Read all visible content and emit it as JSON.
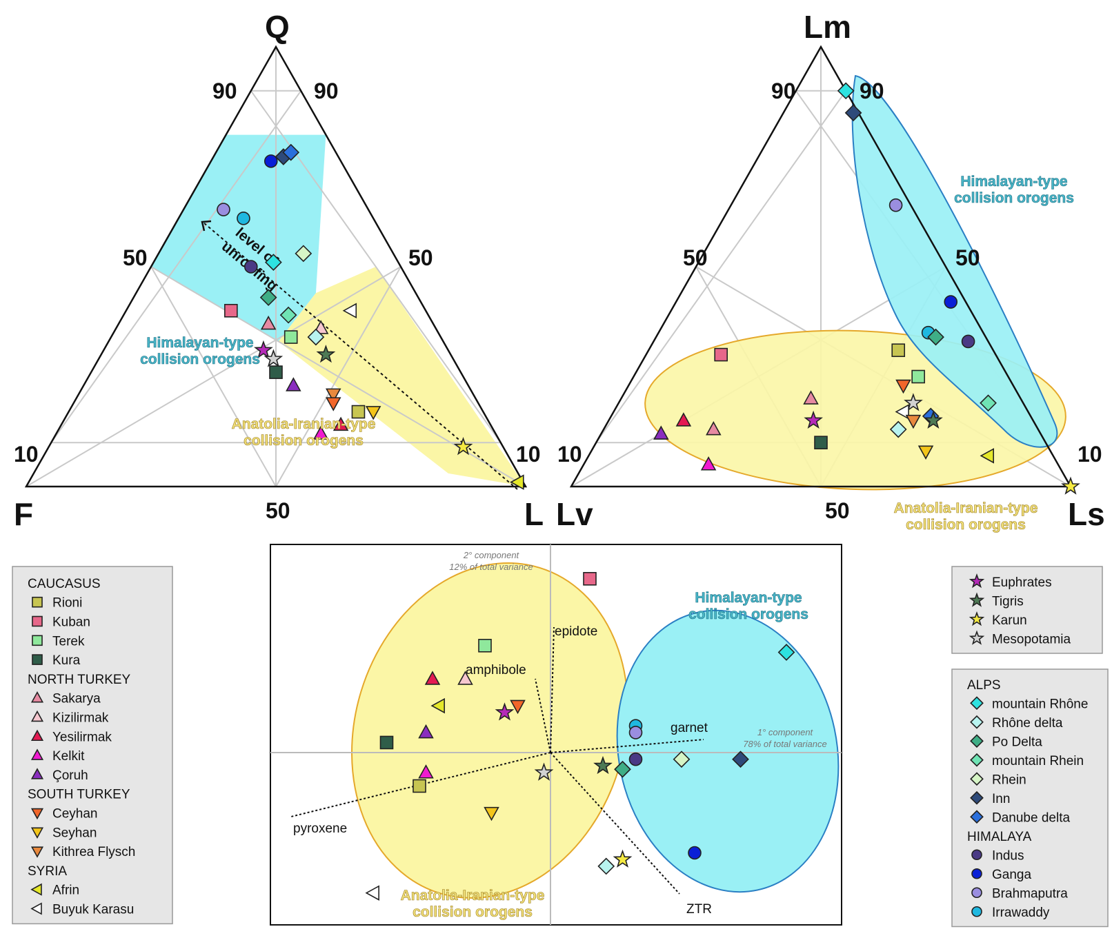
{
  "chart_data": [
    {
      "type": "scatter",
      "subtype": "ternary",
      "vertices": {
        "top": "Q",
        "left": "F",
        "right": "L"
      },
      "ticks": {
        "left_edge": [
          "90",
          "50",
          "10"
        ],
        "right_edge": [
          "90",
          "50",
          "10"
        ],
        "bottom_edge": [
          "50"
        ]
      },
      "regions": [
        {
          "name": "Himalayan-type collision orogens",
          "color": "#9af0f5"
        },
        {
          "name": "Anatolia-Iranian-type collision orogens",
          "color": "#fbf6a6"
        }
      ],
      "annotation": "level of unroofing",
      "points": [
        {
          "source": "Ganga",
          "Q": 74,
          "F": 14,
          "L": 12
        },
        {
          "source": "Inn",
          "Q": 75,
          "F": 11,
          "L": 14
        },
        {
          "source": "Danube delta",
          "Q": 76,
          "F": 9,
          "L": 15
        },
        {
          "source": "Brahmaputra",
          "Q": 63,
          "F": 29,
          "L": 8
        },
        {
          "source": "Irrawaddy",
          "Q": 61,
          "F": 26,
          "L": 13
        },
        {
          "source": "mountain Rhône",
          "Q": 51,
          "F": 25,
          "L": 24
        },
        {
          "source": "Rhein",
          "Q": 53,
          "F": 18,
          "L": 29
        },
        {
          "source": "Indus",
          "Q": 50,
          "F": 30,
          "L": 20
        },
        {
          "source": "Po Delta",
          "Q": 43,
          "F": 30,
          "L": 27
        },
        {
          "source": "Kuban",
          "Q": 40,
          "F": 39,
          "L": 21
        },
        {
          "source": "mountain Rhein",
          "Q": 39,
          "F": 28,
          "L": 33
        },
        {
          "source": "Buyuk Karasu",
          "Q": 40,
          "F": 15,
          "L": 45
        },
        {
          "source": "Sakarya",
          "Q": 37,
          "F": 33,
          "L": 30
        },
        {
          "source": "Kizilirmak",
          "Q": 36,
          "F": 23,
          "L": 41
        },
        {
          "source": "Terek",
          "Q": 34,
          "F": 30,
          "L": 36
        },
        {
          "source": "Rhône delta",
          "Q": 34,
          "F": 25,
          "L": 41
        },
        {
          "source": "Euphrates",
          "Q": 31,
          "F": 37,
          "L": 32
        },
        {
          "source": "Mesopotamia",
          "Q": 29,
          "F": 36,
          "L": 35
        },
        {
          "source": "Tigris",
          "Q": 30,
          "F": 25,
          "L": 45
        },
        {
          "source": "Kura",
          "Q": 26,
          "F": 37,
          "L": 37
        },
        {
          "source": "Çoruh",
          "Q": 23,
          "F": 35,
          "L": 42
        },
        {
          "source": "Kithrea Flysch",
          "Q": 21,
          "F": 28,
          "L": 51
        },
        {
          "source": "Ceyhan",
          "Q": 19,
          "F": 29,
          "L": 52
        },
        {
          "source": "Rioni",
          "Q": 17,
          "F": 25,
          "L": 58
        },
        {
          "source": "Seyhan",
          "Q": 17,
          "F": 22,
          "L": 61
        },
        {
          "source": "Yesilirmak",
          "Q": 14,
          "F": 30,
          "L": 56
        },
        {
          "source": "Kelkit",
          "Q": 12,
          "F": 35,
          "L": 53
        },
        {
          "source": "Karun",
          "Q": 9,
          "F": 8,
          "L": 83
        },
        {
          "source": "Afrin",
          "Q": 1,
          "F": 1,
          "L": 98
        }
      ]
    },
    {
      "type": "scatter",
      "subtype": "ternary",
      "vertices": {
        "top": "Lm",
        "left": "Lv",
        "right": "Ls"
      },
      "ticks": {
        "left_edge": [
          "90",
          "50",
          "10"
        ],
        "right_edge": [
          "90",
          "50",
          "10"
        ],
        "bottom_edge": [
          "50"
        ]
      },
      "regions": [
        {
          "name": "Himalayan-type collision orogens",
          "color": "#9af0f5"
        },
        {
          "name": "Anatolia-Iranian-type collision orogens",
          "color": "#fbf6a6"
        }
      ],
      "points": [
        {
          "source": "mountain Rhône",
          "Lm": 90,
          "Lv": 0,
          "Ls": 10
        },
        {
          "source": "Inn",
          "Lm": 85,
          "Lv": 1,
          "Ls": 14
        },
        {
          "source": "Brahmaputra",
          "Lm": 64,
          "Lv": 3,
          "Ls": 33
        },
        {
          "source": "Ganga",
          "Lm": 42,
          "Lv": 3,
          "Ls": 55
        },
        {
          "source": "Irrawaddy",
          "Lm": 35,
          "Lv": 11,
          "Ls": 54
        },
        {
          "source": "Po Delta",
          "Lm": 34,
          "Lv": 10,
          "Ls": 56
        },
        {
          "source": "Indus",
          "Lm": 33,
          "Lv": 4,
          "Ls": 63
        },
        {
          "source": "Kuban",
          "Lm": 30,
          "Lv": 55,
          "Ls": 15
        },
        {
          "source": "Rioni",
          "Lm": 31,
          "Lv": 19,
          "Ls": 50
        },
        {
          "source": "Terek",
          "Lm": 25,
          "Lv": 18,
          "Ls": 57
        },
        {
          "source": "Ceyhan",
          "Lm": 23,
          "Lv": 22,
          "Ls": 55
        },
        {
          "source": "Sakarya",
          "Lm": 20,
          "Lv": 42,
          "Ls": 38
        },
        {
          "source": "Mesopotamia",
          "Lm": 19,
          "Lv": 22,
          "Ls": 59
        },
        {
          "source": "Buyuk Karasu",
          "Lm": 17,
          "Lv": 25,
          "Ls": 58
        },
        {
          "source": "mountain Rhein",
          "Lm": 19,
          "Lv": 7,
          "Ls": 74
        },
        {
          "source": "Danube delta",
          "Lm": 16,
          "Lv": 20,
          "Ls": 64
        },
        {
          "source": "Kithrea Flysch",
          "Lm": 15,
          "Lv": 24,
          "Ls": 61
        },
        {
          "source": "Tigris",
          "Lm": 15,
          "Lv": 20,
          "Ls": 65
        },
        {
          "source": "Euphrates",
          "Lm": 15,
          "Lv": 44,
          "Ls": 41
        },
        {
          "source": "Rhône delta",
          "Lm": 13,
          "Lv": 28,
          "Ls": 59
        },
        {
          "source": "Yesilirmak",
          "Lm": 15,
          "Lv": 70,
          "Ls": 15
        },
        {
          "source": "Sakarya",
          "Lm": 13,
          "Lv": 65,
          "Ls": 22
        },
        {
          "source": "Çoruh",
          "Lm": 12,
          "Lv": 76,
          "Ls": 12
        },
        {
          "source": "Kura",
          "Lm": 10,
          "Lv": 45,
          "Ls": 45
        },
        {
          "source": "Seyhan",
          "Lm": 8,
          "Lv": 25,
          "Ls": 67
        },
        {
          "source": "Afrin",
          "Lm": 7,
          "Lv": 13,
          "Ls": 80
        },
        {
          "source": "Kelkit",
          "Lm": 5,
          "Lv": 70,
          "Ls": 25
        },
        {
          "source": "Karun",
          "Lm": 0,
          "Lv": 0,
          "Ls": 100
        }
      ]
    },
    {
      "type": "scatter",
      "subtype": "pca-biplot",
      "axes": {
        "pc2": [
          "2° component",
          "12% of total variance"
        ],
        "pc1": [
          "1° component",
          "78% of total variance"
        ]
      },
      "regions": [
        {
          "name": "Himalayan-type collision orogens",
          "color": "#9af0f5"
        },
        {
          "name": "Anatolia-Iranian-type collision orogens",
          "color": "#fbf6a6"
        }
      ],
      "loadings": [
        "epidote",
        "amphibole",
        "garnet",
        "pyroxene",
        "ZTR"
      ],
      "xlim": [
        -3.8,
        3.8
      ],
      "ylim": [
        -2.2,
        2.8
      ],
      "points": [
        {
          "source": "Kuban",
          "x": 0.6,
          "y": 2.6
        },
        {
          "source": "Terek",
          "x": -1.0,
          "y": 1.6
        },
        {
          "source": "mountain Rhône",
          "x": 3.6,
          "y": 1.5
        },
        {
          "source": "Yesilirmak",
          "x": -1.8,
          "y": 1.1
        },
        {
          "source": "Kizilirmak",
          "x": -1.3,
          "y": 1.1
        },
        {
          "source": "Afrin",
          "x": -1.7,
          "y": 0.7
        },
        {
          "source": "Ceyhan",
          "x": -0.5,
          "y": 0.7
        },
        {
          "source": "Euphrates",
          "x": -0.7,
          "y": 0.6
        },
        {
          "source": "Çoruh",
          "x": -1.9,
          "y": 0.3
        },
        {
          "source": "Kura",
          "x": -2.5,
          "y": 0.15
        },
        {
          "source": "Irrawaddy",
          "x": 1.3,
          "y": 0.4
        },
        {
          "source": "Brahmaputra",
          "x": 1.3,
          "y": 0.3
        },
        {
          "source": "Indus",
          "x": 1.3,
          "y": -0.1
        },
        {
          "source": "Po Delta",
          "x": 1.1,
          "y": -0.25
        },
        {
          "source": "Rhein",
          "x": 2.0,
          "y": -0.1
        },
        {
          "source": "Inn",
          "x": 2.9,
          "y": -0.1
        },
        {
          "source": "Tigris",
          "x": 0.8,
          "y": -0.2
        },
        {
          "source": "Mesopotamia",
          "x": -0.1,
          "y": -0.3
        },
        {
          "source": "Kelkit",
          "x": -1.9,
          "y": -0.3
        },
        {
          "source": "Rioni",
          "x": -2.0,
          "y": -0.5
        },
        {
          "source": "Seyhan",
          "x": -0.9,
          "y": -0.9
        },
        {
          "source": "Ganga",
          "x": 2.2,
          "y": -1.5
        },
        {
          "source": "Karun",
          "x": 1.1,
          "y": -1.6
        },
        {
          "source": "Rhône delta",
          "x": 0.85,
          "y": -1.7
        },
        {
          "source": "Buyuk Karasu",
          "x": -2.7,
          "y": -2.1
        }
      ]
    }
  ],
  "labels": {
    "Q": "Q",
    "F": "F",
    "L": "L",
    "Lm": "Lm",
    "Lv": "Lv",
    "Ls": "Ls",
    "t90": "90",
    "t50": "50",
    "t10": "10",
    "him1": "Himalayan-type",
    "him2": "collision orogens",
    "ana1": "Anatolia-Iranian-type",
    "ana2": "collision orogens",
    "unroof1": "level of",
    "unroof2": "unroofing",
    "pc2a": "2° component",
    "pc2b": "12% of total variance",
    "pc1a": "1° component",
    "pc1b": "78% of total variance",
    "epidote": "epidote",
    "amphibole": "amphibole",
    "garnet": "garnet",
    "pyroxene": "pyroxene",
    "ZTR": "ZTR"
  },
  "legend": {
    "left": [
      {
        "heading": "CAUCASUS"
      },
      {
        "label": "Rioni",
        "shape": "square",
        "color": "#c7c552"
      },
      {
        "label": "Kuban",
        "shape": "square",
        "color": "#e7688a"
      },
      {
        "label": "Terek",
        "shape": "square",
        "color": "#8fe89c"
      },
      {
        "label": "Kura",
        "shape": "square",
        "color": "#2f5d49"
      },
      {
        "heading": "NORTH TURKEY"
      },
      {
        "label": "Sakarya",
        "shape": "triangle-up",
        "color": "#e78aa2"
      },
      {
        "label": "Kizilirmak",
        "shape": "triangle-up",
        "color": "#f6c7cf"
      },
      {
        "label": "Yesilirmak",
        "shape": "triangle-up",
        "color": "#e41a52"
      },
      {
        "label": "Kelkit",
        "shape": "triangle-up",
        "color": "#f01ad0"
      },
      {
        "label": "Çoruh",
        "shape": "triangle-up",
        "color": "#8a2dbf"
      },
      {
        "heading": "SOUTH TURKEY"
      },
      {
        "label": "Ceyhan",
        "shape": "triangle-down",
        "color": "#f2662a"
      },
      {
        "label": "Seyhan",
        "shape": "triangle-down",
        "color": "#f3c51a"
      },
      {
        "label": "Kithrea Flysch",
        "shape": "triangle-down",
        "color": "#e9893d"
      },
      {
        "heading": "SYRIA"
      },
      {
        "label": "Afrin",
        "shape": "triangle-left",
        "color": "#e5e82a"
      },
      {
        "label": "Buyuk Karasu",
        "shape": "triangle-left",
        "color": "#ffffff"
      }
    ],
    "stars": [
      {
        "label": "Euphrates",
        "shape": "star",
        "color": "#b52ab8"
      },
      {
        "label": "Tigris",
        "shape": "star",
        "color": "#4e7a55"
      },
      {
        "label": "Karun",
        "shape": "star",
        "color": "#f5ea42"
      },
      {
        "label": "Mesopotamia",
        "shape": "star",
        "color": "#d2d2d2"
      }
    ],
    "right": [
      {
        "heading": "ALPS"
      },
      {
        "label": "mountain Rhône",
        "shape": "diamond",
        "color": "#2ee2e0"
      },
      {
        "label": "Rhône delta",
        "shape": "diamond",
        "color": "#b8f4f0"
      },
      {
        "label": "Po Delta",
        "shape": "diamond",
        "color": "#3fae86"
      },
      {
        "label": "mountain Rhein",
        "shape": "diamond",
        "color": "#6fe3b4"
      },
      {
        "label": "Rhein",
        "shape": "diamond",
        "color": "#d6f5c6"
      },
      {
        "label": "Inn",
        "shape": "diamond",
        "color": "#2e4a7a"
      },
      {
        "label": "Danube delta",
        "shape": "diamond",
        "color": "#2a6fdc"
      },
      {
        "heading": "HIMALAYA"
      },
      {
        "label": "Indus",
        "shape": "circle",
        "color": "#4a3a85"
      },
      {
        "label": "Ganga",
        "shape": "circle",
        "color": "#0a1fd6"
      },
      {
        "label": "Brahmaputra",
        "shape": "circle",
        "color": "#9a8ee0"
      },
      {
        "label": "Irrawaddy",
        "shape": "circle",
        "color": "#1fb8e0"
      }
    ]
  },
  "colors": {
    "himalayan_fill": "#9af0f5",
    "himalayan_stroke": "#2a7fc4",
    "anatolia_fill": "#fbf6a6",
    "anatolia_stroke": "#e5a82a",
    "legend_box": "#e6e6e6"
  }
}
